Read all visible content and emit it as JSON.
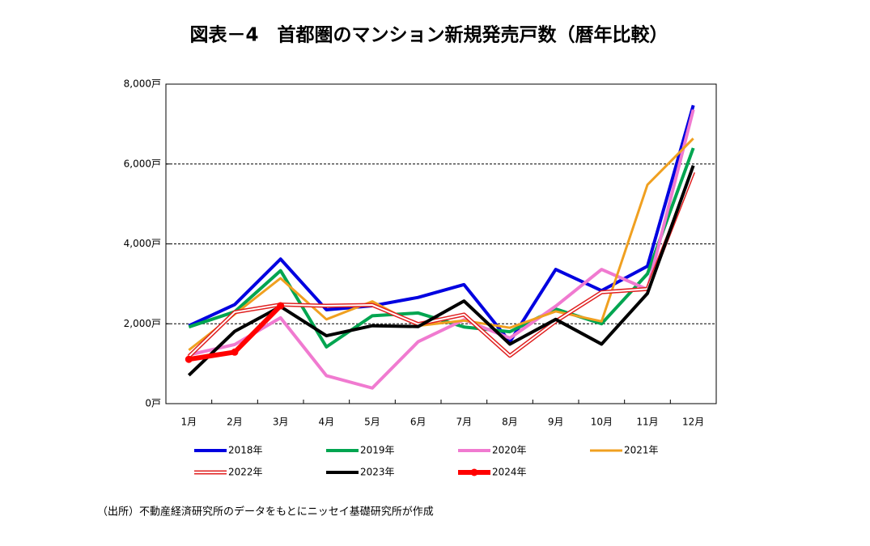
{
  "chart_data": {
    "type": "line",
    "title": "図表－4　首都圏のマンション新規発売戸数（暦年比較）",
    "source": "（出所）不動産経済研究所のデータをもとにニッセイ基礎研究所が作成",
    "categories": [
      "1月",
      "2月",
      "3月",
      "4月",
      "5月",
      "6月",
      "7月",
      "8月",
      "9月",
      "10月",
      "11月",
      "12月"
    ],
    "ylim": [
      0,
      8000
    ],
    "yticks": [
      {
        "value": 0,
        "label": "0戸"
      },
      {
        "value": 2000,
        "label": "2,000戸"
      },
      {
        "value": 4000,
        "label": "4,000戸"
      },
      {
        "value": 6000,
        "label": "6,000戸"
      },
      {
        "value": 8000,
        "label": "8,000戸"
      }
    ],
    "grid": true,
    "series": [
      {
        "name": "2018年",
        "color": "#0000e0",
        "values": [
          1950,
          2480,
          3620,
          2350,
          2450,
          2660,
          2980,
          1550,
          3360,
          2830,
          3440,
          7470
        ]
      },
      {
        "name": "2019年",
        "color": "#00a550",
        "values": [
          1920,
          2300,
          3330,
          1420,
          2200,
          2270,
          1920,
          1800,
          2370,
          2000,
          3250,
          6400
        ]
      },
      {
        "name": "2020年",
        "color": "#f07ad0",
        "values": [
          1220,
          1480,
          2150,
          700,
          390,
          1550,
          2100,
          1640,
          2440,
          3360,
          2860,
          7360
        ]
      },
      {
        "name": "2021年",
        "color": "#f0a020",
        "values": [
          1340,
          2240,
          3140,
          2110,
          2560,
          1950,
          2080,
          1900,
          2310,
          2060,
          5480,
          6640
        ]
      },
      {
        "name": "2022年",
        "color": "#e02020",
        "line_style": "double",
        "values": [
          1180,
          2290,
          2480,
          2450,
          2470,
          1990,
          2230,
          1200,
          2060,
          2790,
          2870,
          5800
        ]
      },
      {
        "name": "2023年",
        "color": "#000000",
        "values": [
          710,
          1810,
          2430,
          1700,
          1950,
          1930,
          2570,
          1490,
          2110,
          1490,
          2760,
          5960
        ]
      },
      {
        "name": "2024年",
        "color": "#ff0000",
        "markers": true,
        "values": [
          1110,
          1290,
          2450,
          null,
          null,
          null,
          null,
          null,
          null,
          null,
          null,
          null
        ]
      }
    ]
  }
}
